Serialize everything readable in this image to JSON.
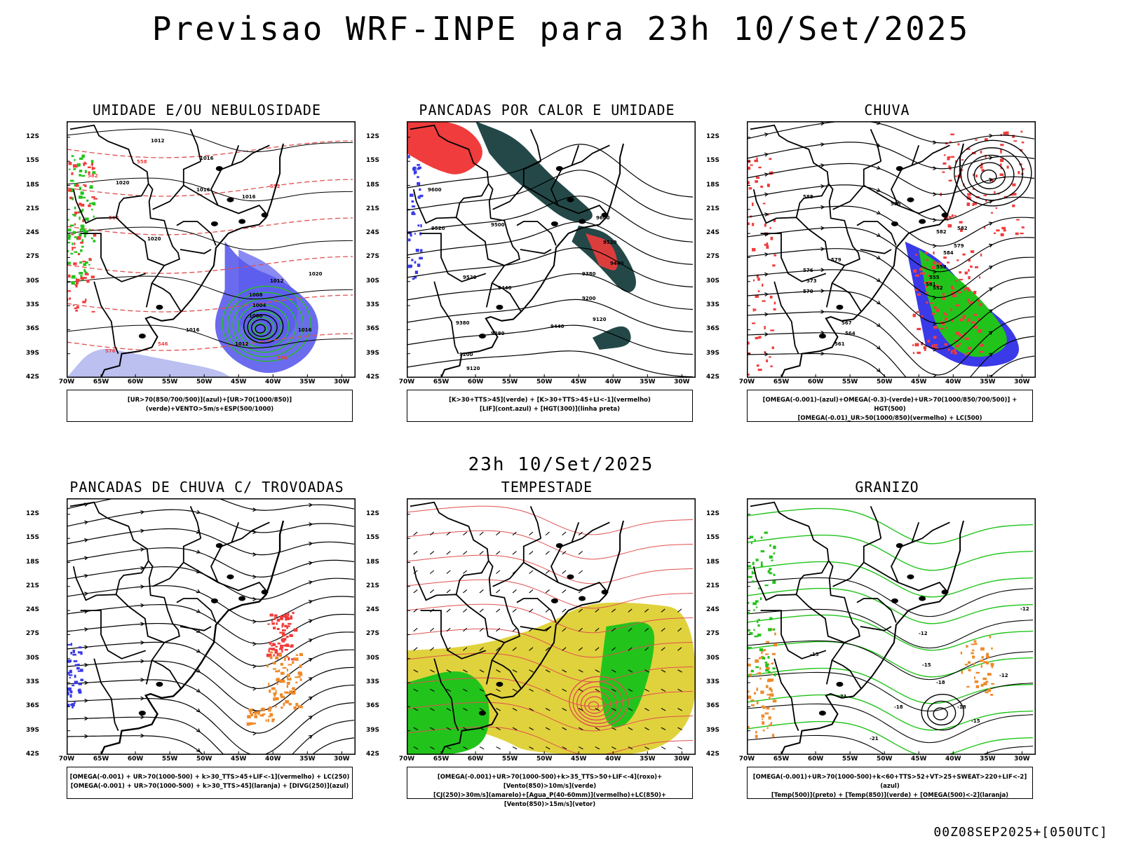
{
  "title": "Previsao WRF-INPE  para 23h 10/Set/2025",
  "mid_title": "23h 10/Set/2025",
  "footer": "00Z08SEP2025+[050UTC]",
  "axes": {
    "lat_labels": [
      "12S",
      "15S",
      "18S",
      "21S",
      "24S",
      "27S",
      "30S",
      "33S",
      "36S",
      "39S",
      "42S"
    ],
    "lon_labels": [
      "70W",
      "65W",
      "60W",
      "55W",
      "50W",
      "45W",
      "40W",
      "35W",
      "30W"
    ]
  },
  "colors": {
    "red": "#f03c3c",
    "blue": "#3a3ae8",
    "green": "#22c41c",
    "orange": "#ee8a2a",
    "yellow": "#e0d23c",
    "teal": "#244848",
    "lavender": "#aab0ee",
    "contour_red": "#e05050"
  },
  "panels": [
    {
      "title": "UMIDADE E/OU NEBULOSIDADE",
      "legend": [
        "[UR>70(850/700/500)](azul)+[UR>70(1000/850)](verde)+VENTO>5m/s+ESP(500/1000)"
      ]
    },
    {
      "title": "PANCADAS POR CALOR E UMIDADE",
      "legend": [
        "[K>30+TTS>45](verde) + [K>30+TTS>45+LI<-1](vermelho)",
        "[LIF](cont.azul) + [HGT(300)](linha preta)"
      ]
    },
    {
      "title": "CHUVA",
      "legend": [
        "[OMEGA(-0.001)-(azul)+OMEGA(-0.3)-(verde)+UR>70(1000/850/700/500)] + HGT(500)",
        "[OMEGA(-0.01)_UR>50(1000/850)(vermelho) + LC(500)"
      ]
    },
    {
      "title": "PANCADAS DE CHUVA C/ TROVOADAS",
      "legend": [
        "[OMEGA(-0.001) + UR>70(1000-500) + k>30_TTS>45+LIF<-1](vermelho) + LC(250)",
        "[OMEGA(-0.001) + UR>70(1000-500) + k>30_TTS>45](laranja) + [DIVG(250)](azul)"
      ]
    },
    {
      "title": "TEMPESTADE",
      "legend": [
        "[OMEGA(-0.001)+UR>70(1000-500)+k>35_TTS>50+LIF<-4](roxo)+[Vento(850)>10m/s](verde)",
        "[CJ(250)>30m/s](amarelo)+[Agua_P(40-60mm)](vermelho)+LC(850)+[Vento(850)>15m/s](vetor)"
      ]
    },
    {
      "title": "GRANIZO",
      "legend": [
        "[OMEGA(-0.001)+UR>70(1000-500)+k<60+TTS>52+VT>25+SWEAT>220+LIF<-2](azul)",
        "[Temp(500)](preto) + [Temp(850)](verde) + [OMEGA(500)<-2](laranja)"
      ]
    }
  ],
  "contour_labels": {
    "p1": [
      "1012",
      "1016",
      "1020",
      "1016",
      "1016",
      "1020",
      "1012",
      "1008",
      "1004",
      "1000",
      "1016",
      "1012",
      "1016",
      "1020",
      "570",
      "576",
      "582",
      "558",
      "564",
      "552",
      "546"
    ],
    "p2": [
      "9600",
      "9520",
      "9500",
      "9600",
      "9520",
      "9440",
      "9520",
      "9380",
      "9440",
      "9200",
      "9380",
      "9280",
      "9200",
      "9120",
      "9440",
      "9120"
    ],
    "p3": [
      "588",
      "585",
      "582",
      "579",
      "576",
      "573",
      "570",
      "567",
      "564",
      "561",
      "558",
      "555",
      "552",
      "579",
      "582",
      "584",
      "581"
    ],
    "p6": [
      "-12",
      "-15",
      "-18",
      "-21",
      "-18",
      "-15",
      "-12",
      "-21",
      "-15",
      "-18",
      "-12"
    ]
  }
}
